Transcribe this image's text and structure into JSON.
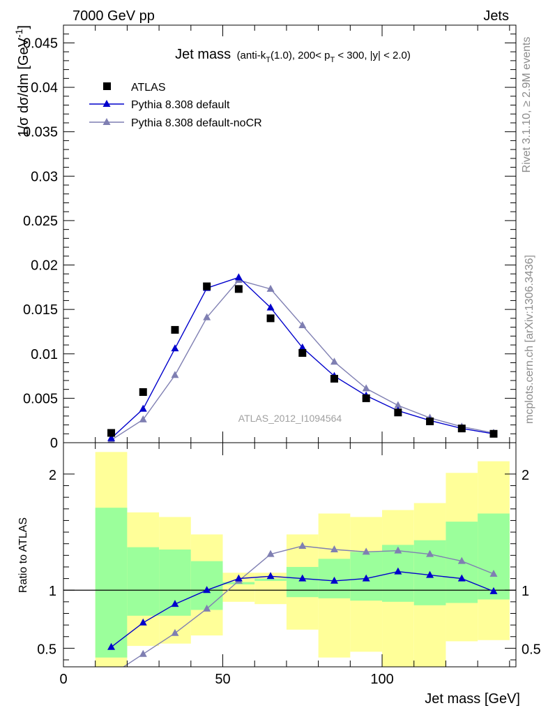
{
  "header": {
    "left": "7000 GeV pp",
    "right": "Jets"
  },
  "side_text": {
    "rivet": "Rivet 3.1.10, ≥ 2.9M events",
    "mcplots": "mcplots.cern.ch [arXiv:1306.3436]"
  },
  "watermark": "ATLAS_2012_I1094564",
  "colors": {
    "atlas": "#000000",
    "default": "#0000cc",
    "noCR": "#7f7fb2",
    "band_inner": "#9bff9b",
    "band_outer": "#ffff99"
  },
  "chart_data": [
    {
      "type": "scatter",
      "title": "Jet mass",
      "title_detail": "(anti-k_T(1.0), 200< p_T < 300, |y| < 2.0)",
      "ylabel": "1/σ dσ/dm [GeV^-1]",
      "xlim": [
        0,
        142
      ],
      "ylim": [
        0,
        0.047
      ],
      "x_ticks": [
        0,
        50,
        100
      ],
      "y_tick_labels": [
        "0",
        "0.005",
        "0.01",
        "0.015",
        "0.02",
        "0.025",
        "0.03",
        "0.035",
        "0.04",
        "0.045"
      ],
      "legend": "top-left",
      "x": [
        15,
        25,
        35,
        45,
        55,
        65,
        75,
        85,
        95,
        105,
        115,
        125,
        135
      ],
      "series": [
        {
          "name": "ATLAS",
          "marker": "square",
          "values": [
            0.0011,
            0.0057,
            0.0127,
            0.0176,
            0.0173,
            0.014,
            0.0101,
            0.0072,
            0.005,
            0.0034,
            0.0024,
            0.0016,
            0.001
          ]
        },
        {
          "name": "Pythia 8.308 default",
          "marker": "triangle",
          "values": [
            0.0005,
            0.0038,
            0.0106,
            0.0174,
            0.0186,
            0.0152,
            0.0107,
            0.0075,
            0.0053,
            0.0036,
            0.0025,
            0.0016,
            0.001
          ]
        },
        {
          "name": "Pythia 8.308 default-noCR",
          "marker": "triangle",
          "values": [
            0.0003,
            0.0026,
            0.0076,
            0.0141,
            0.0183,
            0.0173,
            0.0132,
            0.0091,
            0.0061,
            0.0042,
            0.0028,
            0.0018,
            0.0011
          ]
        }
      ]
    },
    {
      "type": "line",
      "ylabel": "Ratio to ATLAS",
      "xlabel": "Jet mass [GeV]",
      "xlim": [
        0,
        142
      ],
      "ylim": [
        0.34,
        2.27
      ],
      "y_ticks": [
        0.5,
        1,
        2
      ],
      "y_tick_labels": [
        "0.5",
        "1",
        "2"
      ],
      "bin_edges": [
        10,
        20,
        30,
        40,
        50,
        60,
        70,
        80,
        90,
        100,
        110,
        120,
        130,
        140
      ],
      "band_inner": {
        "low": [
          0.42,
          0.78,
          0.78,
          0.83,
          1.05,
          1.08,
          0.94,
          0.93,
          0.91,
          0.9,
          0.87,
          0.89,
          0.92
        ],
        "high": [
          1.71,
          1.37,
          1.35,
          1.25,
          1.07,
          1.1,
          1.2,
          1.27,
          1.33,
          1.39,
          1.43,
          1.59,
          1.66
        ]
      },
      "band_outer": {
        "low": [
          0.31,
          0.52,
          0.54,
          0.61,
          0.9,
          0.88,
          0.66,
          0.42,
          0.47,
          0.31,
          0.31,
          0.56,
          0.57
        ],
        "high": [
          2.19,
          1.67,
          1.63,
          1.48,
          1.15,
          1.15,
          1.48,
          1.66,
          1.63,
          1.69,
          1.75,
          2.01,
          2.11
        ]
      },
      "x": [
        15,
        25,
        35,
        45,
        55,
        65,
        75,
        85,
        95,
        105,
        115,
        125,
        135
      ],
      "series": [
        {
          "name": "Pythia 8.308 default",
          "values": [
            0.51,
            0.72,
            0.88,
            1.0,
            1.1,
            1.12,
            1.1,
            1.08,
            1.1,
            1.16,
            1.13,
            1.1,
            0.99
          ]
        },
        {
          "name": "Pythia 8.308 default-noCR",
          "values": [
            0.27,
            0.45,
            0.63,
            0.84,
            1.08,
            1.31,
            1.38,
            1.35,
            1.33,
            1.34,
            1.31,
            1.25,
            1.14
          ]
        }
      ]
    }
  ]
}
